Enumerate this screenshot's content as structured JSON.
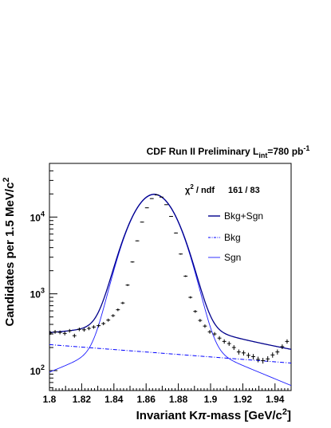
{
  "chart_data": {
    "type": "line",
    "title_main": "CDF Run II  Preliminary L",
    "title_sub": "int",
    "title_tail": "=780 pb",
    "title_sup": "-1",
    "xlabel_main": "Invariant K",
    "xlabel_pi": "π",
    "xlabel_tail": "-mass [GeV/c",
    "xlabel_sup": "2",
    "xlabel_close": "]",
    "ylabel_main": "Candidates per 1.5 MeV/c",
    "ylabel_sup": "2",
    "xlim": [
      1.8,
      1.95
    ],
    "ylim": [
      55,
      50000
    ],
    "yscale": "log",
    "x_ticks": [
      "1.8",
      "1.82",
      "1.84",
      "1.86",
      "1.88",
      "1.9",
      "1.92",
      "1.94"
    ],
    "x_tick_values": [
      1.8,
      1.82,
      1.84,
      1.86,
      1.88,
      1.9,
      1.92,
      1.94
    ],
    "y_ticks": [
      {
        "base": "10",
        "exp": "2",
        "value": 100
      },
      {
        "base": "10",
        "exp": "3",
        "value": 1000
      },
      {
        "base": "10",
        "exp": "4",
        "value": 10000
      }
    ],
    "chi2_symbol": "χ",
    "chi2_sup": "2",
    "chi2_text": " / ndf",
    "chi2_value": "161 / 83",
    "legend_position": "top-right",
    "series": [
      {
        "name": "Bkg+Sgn",
        "color": "#00008b",
        "style": "solid"
      },
      {
        "name": "Bkg",
        "color": "#0000ff",
        "style": "dash-dot"
      },
      {
        "name": "Sgn",
        "color": "#1c1cff",
        "style": "solid"
      }
    ],
    "model": {
      "mean": 1.865,
      "sigma": 0.0115,
      "signal_peak": 19300,
      "tail_amp": 350,
      "tail_width": 0.05,
      "bkg_at_1_80": 218,
      "bkg_at_1_93": 135
    },
    "data_points": {
      "x": [
        1.8005,
        1.8035,
        1.8065,
        1.8095,
        1.8125,
        1.8155,
        1.8185,
        1.8215,
        1.8245,
        1.8275,
        1.8305,
        1.8335,
        1.8365,
        1.8395,
        1.8425,
        1.8455,
        1.8485,
        1.8515,
        1.8545,
        1.8575,
        1.8605,
        1.8635,
        1.8665,
        1.8695,
        1.8725,
        1.8755,
        1.8785,
        1.8815,
        1.8845,
        1.8875,
        1.8905,
        1.8935,
        1.8965,
        1.8995,
        1.9025,
        1.9055,
        1.9085,
        1.9115,
        1.9145,
        1.9175,
        1.9205,
        1.9235,
        1.9265,
        1.9295,
        1.9325,
        1.9355,
        1.9385,
        1.9415,
        1.9445,
        1.9475
      ],
      "y": [
        310,
        320,
        315,
        305,
        330,
        285,
        345,
        340,
        355,
        370,
        385,
        410,
        455,
        520,
        620,
        760,
        1300,
        2600,
        4900,
        8600,
        13200,
        17400,
        19400,
        18200,
        14500,
        10200,
        6200,
        3300,
        1700,
        900,
        590,
        450,
        380,
        320,
        300,
        265,
        240,
        225,
        200,
        175,
        170,
        158,
        152,
        140,
        135,
        142,
        160,
        175,
        205,
        240
      ]
    }
  }
}
